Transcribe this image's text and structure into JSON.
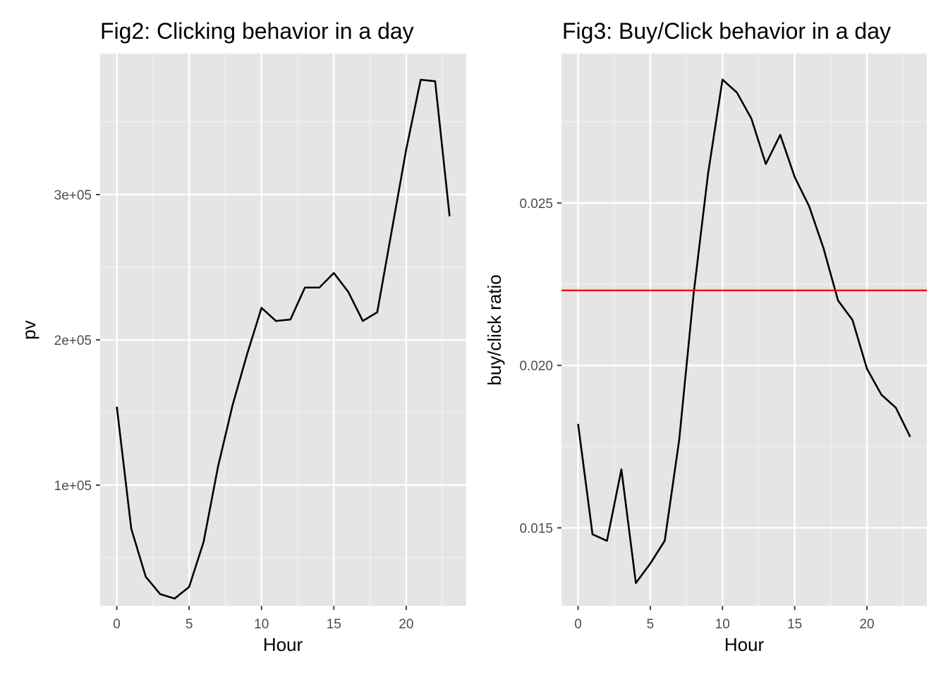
{
  "chart_data": [
    {
      "type": "line",
      "title": "Fig2: Clicking behavior in a day",
      "xlabel": "Hour",
      "ylabel": "pv",
      "xlim": [
        -1.15,
        24.15
      ],
      "ylim": [
        17000,
        397000
      ],
      "x_ticks": [
        0,
        5,
        10,
        15,
        20
      ],
      "x_tick_labels": [
        "0",
        "5",
        "10",
        "15",
        "20"
      ],
      "y_ticks": [
        100000,
        200000,
        300000
      ],
      "y_tick_labels": [
        "1e+05",
        "2e+05",
        "3e+05"
      ],
      "grid": true,
      "series": [
        {
          "x": [
            0,
            1,
            2,
            3,
            4,
            5,
            6,
            7,
            8,
            9,
            10,
            11,
            12,
            13,
            14,
            15,
            16,
            17,
            18,
            19,
            20,
            21,
            22,
            23
          ],
          "values": [
            154000,
            70000,
            37000,
            25000,
            22000,
            30000,
            61000,
            113000,
            155000,
            190000,
            222000,
            213000,
            214000,
            236000,
            236000,
            246000,
            233000,
            213000,
            219000,
            275000,
            331000,
            379000,
            378000,
            285000
          ],
          "color": "#000000"
        }
      ]
    },
    {
      "type": "line",
      "title": "Fig3: Buy/Click behavior in a day",
      "xlabel": "Hour",
      "ylabel": "buy/click ratio",
      "xlim": [
        -1.15,
        24.15
      ],
      "ylim": [
        0.0126,
        0.0296
      ],
      "x_ticks": [
        0,
        5,
        10,
        15,
        20
      ],
      "x_tick_labels": [
        "0",
        "5",
        "10",
        "15",
        "20"
      ],
      "y_ticks": [
        0.015,
        0.02,
        0.025
      ],
      "y_tick_labels": [
        "0.015",
        "0.020",
        "0.025"
      ],
      "grid": true,
      "series": [
        {
          "x": [
            0,
            1,
            2,
            3,
            4,
            5,
            6,
            7,
            8,
            9,
            10,
            11,
            12,
            13,
            14,
            15,
            16,
            17,
            18,
            19,
            20,
            21,
            22,
            23
          ],
          "values": [
            0.0182,
            0.0148,
            0.0146,
            0.0168,
            0.0133,
            0.0139,
            0.0146,
            0.0177,
            0.0222,
            0.0259,
            0.0288,
            0.0284,
            0.0276,
            0.0262,
            0.0271,
            0.0258,
            0.0249,
            0.0236,
            0.022,
            0.0214,
            0.0199,
            0.0191,
            0.0187,
            0.0178
          ],
          "color": "#000000"
        }
      ],
      "hline": {
        "y": 0.02231,
        "color": "#ff0000"
      }
    }
  ]
}
